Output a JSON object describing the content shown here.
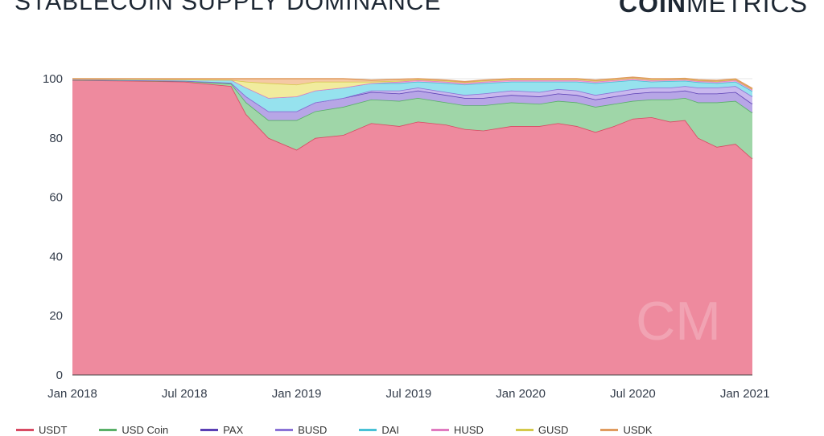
{
  "header": {
    "title": "STABLECOIN SUPPLY DOMINANCE",
    "logo_bold": "COIN",
    "logo_light": "METRICS"
  },
  "watermark": "CM",
  "chart_data": {
    "type": "area",
    "stacked": true,
    "title": "STABLECOIN SUPPLY DOMINANCE",
    "xlabel": "",
    "ylabel": "",
    "ylim": [
      0,
      100
    ],
    "yticks": [
      0,
      20,
      40,
      60,
      80,
      100
    ],
    "xticks": [
      {
        "label": "Jan 2018",
        "t": 0
      },
      {
        "label": "Jul 2018",
        "t": 6
      },
      {
        "label": "Jan 2019",
        "t": 12
      },
      {
        "label": "Jul 2019",
        "t": 18
      },
      {
        "label": "Jan 2020",
        "t": 24
      },
      {
        "label": "Jul 2020",
        "t": 30
      },
      {
        "label": "Jan 2021",
        "t": 36
      }
    ],
    "x_months": [
      0,
      3,
      6,
      8.5,
      9.3,
      10.5,
      12,
      13,
      14.5,
      16,
      17.5,
      18.5,
      20,
      21,
      22,
      23.5,
      25,
      26,
      27,
      28,
      29,
      30,
      31,
      32,
      32.8,
      33.5,
      34.5,
      35.5,
      36.4
    ],
    "series": [
      {
        "name": "USDT",
        "color": "#ee8a9e",
        "line": "#d84a63",
        "values": [
          99.5,
          99.3,
          99.0,
          97.5,
          88,
          80,
          76,
          80,
          81,
          85,
          84,
          85.5,
          84.5,
          83,
          82.5,
          84,
          84,
          85,
          84,
          82,
          84,
          86.5,
          87,
          85.5,
          86,
          80,
          77,
          78,
          73
        ]
      },
      {
        "name": "USD Coin",
        "color": "#9fd6a8",
        "line": "#59b068",
        "values": [
          0.1,
          0.1,
          0.2,
          0.8,
          4,
          6,
          10,
          9,
          9.5,
          8,
          8.5,
          8,
          7.5,
          8,
          8.5,
          8,
          7.5,
          7.5,
          8,
          8.5,
          7.5,
          6,
          6,
          7.5,
          7.5,
          12,
          15,
          14.5,
          15.5
        ]
      },
      {
        "name": "PAX",
        "color": "#b7a6e6",
        "line": "#5a3fb4",
        "values": [
          0.1,
          0.1,
          0.1,
          0.3,
          2,
          3,
          3,
          3,
          3,
          2.5,
          2.5,
          2.5,
          2.5,
          2.5,
          2.5,
          2.5,
          2.5,
          2.5,
          2.5,
          2.5,
          2.5,
          2.5,
          2.5,
          2.5,
          2.5,
          3,
          3,
          3,
          3
        ]
      },
      {
        "name": "BUSD",
        "color": "#c9b8ee",
        "line": "#8a72d6",
        "values": [
          0,
          0,
          0,
          0,
          0,
          0,
          0,
          0,
          0,
          0.5,
          1,
          1,
          1,
          1,
          1.5,
          1.5,
          1.5,
          1.5,
          1.5,
          1.5,
          1.5,
          1.5,
          1.5,
          1.5,
          1.5,
          2,
          2,
          2,
          2.5
        ]
      },
      {
        "name": "DAI",
        "color": "#96e2ee",
        "line": "#48c1d6",
        "values": [
          0.2,
          0.3,
          0.4,
          1,
          3,
          4.5,
          5,
          4,
          3.5,
          2.5,
          2.5,
          2,
          3,
          3.5,
          3.5,
          3,
          3.5,
          2.5,
          3,
          4,
          3.5,
          3,
          2,
          2.2,
          1.8,
          1.8,
          1.5,
          1.5,
          1.8
        ]
      },
      {
        "name": "HUSD",
        "color": "#f0a8d6",
        "line": "#e07ac0",
        "values": [
          0,
          0,
          0,
          0,
          0,
          0,
          0,
          0,
          0,
          0,
          0.5,
          0.5,
          0.5,
          0.5,
          0.5,
          0.5,
          0.5,
          0.5,
          0.5,
          0.5,
          0.5,
          0.5,
          0.5,
          0.4,
          0.4,
          0.4,
          0.5,
          0.5,
          0.5
        ]
      },
      {
        "name": "GUSD",
        "color": "#f1ec9e",
        "line": "#d4c94a",
        "values": [
          0,
          0,
          0,
          0,
          2,
          5,
          4,
          3,
          2,
          0.5,
          0.3,
          0.2,
          0.3,
          0.3,
          0.3,
          0.3,
          0.3,
          0.3,
          0.3,
          0.3,
          0.2,
          0.2,
          0.2,
          0.2,
          0.2,
          0.2,
          0.2,
          0.2,
          0.2
        ]
      },
      {
        "name": "USDK",
        "color": "#f5c9a4",
        "line": "#e09b5f",
        "values": [
          0.1,
          0.2,
          0.3,
          0.4,
          1,
          1.5,
          2,
          1,
          1,
          0.5,
          0.5,
          0.3,
          0.2,
          0.2,
          0.2,
          0.2,
          0.2,
          0.2,
          0.2,
          0.2,
          0.3,
          0.3,
          0.3,
          0.2,
          0.2,
          0.2,
          0.2,
          0.2,
          0.2
        ]
      }
    ]
  }
}
